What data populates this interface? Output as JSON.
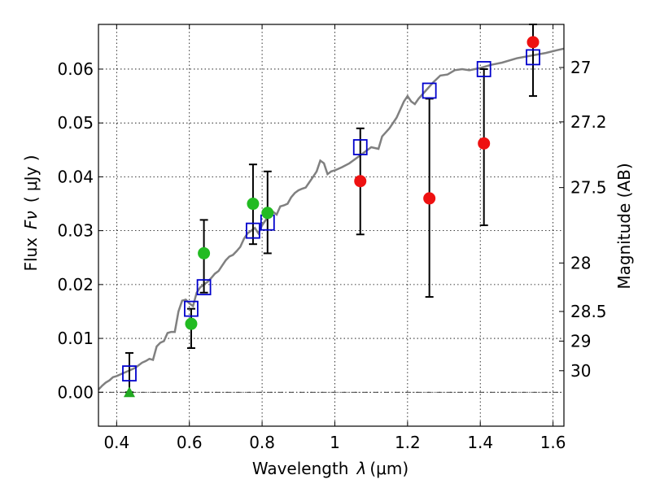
{
  "chart_data": {
    "type": "scatter",
    "xlabel_text": "Wavelength",
    "xlabel_symbol": "λ",
    "xlabel_unit": "(μm)",
    "ylabel_text": "Flux",
    "ylabel_symbol": "Fν",
    "ylabel_unit": "( μJy )",
    "y2label": "Magnitude (AB)",
    "xlim": [
      0.35,
      1.63
    ],
    "ylim": [
      -0.0063,
      0.0683
    ],
    "grid": true,
    "xticks": [
      {
        "value": 0.4,
        "label": "0.4"
      },
      {
        "value": 0.6,
        "label": "0.6"
      },
      {
        "value": 0.8,
        "label": "0.8"
      },
      {
        "value": 1.0,
        "label": "1"
      },
      {
        "value": 1.2,
        "label": "1.2"
      },
      {
        "value": 1.4,
        "label": "1.4"
      },
      {
        "value": 1.6,
        "label": "1.6"
      }
    ],
    "yticks": [
      {
        "value": 0.0,
        "label": "0.00"
      },
      {
        "value": 0.01,
        "label": "0.01"
      },
      {
        "value": 0.02,
        "label": "0.02"
      },
      {
        "value": 0.03,
        "label": "0.03"
      },
      {
        "value": 0.04,
        "label": "0.04"
      },
      {
        "value": 0.05,
        "label": "0.05"
      },
      {
        "value": 0.06,
        "label": "0.06"
      }
    ],
    "y2ticks": [
      {
        "flux": 0.0603,
        "label": "27"
      },
      {
        "flux": 0.0502,
        "label": "27.2"
      },
      {
        "flux": 0.038,
        "label": "27.5"
      },
      {
        "flux": 0.024,
        "label": "28"
      },
      {
        "flux": 0.015,
        "label": "28.5"
      },
      {
        "flux": 0.0095,
        "label": "29"
      },
      {
        "flux": 0.004,
        "label": "30"
      }
    ],
    "sed_model": {
      "color": "#808080",
      "points": [
        [
          0.35,
          0.0005
        ],
        [
          0.36,
          0.0012
        ],
        [
          0.37,
          0.0018
        ],
        [
          0.38,
          0.0022
        ],
        [
          0.39,
          0.0028
        ],
        [
          0.4,
          0.003
        ],
        [
          0.41,
          0.0033
        ],
        [
          0.42,
          0.0036
        ],
        [
          0.43,
          0.0039
        ],
        [
          0.44,
          0.0042
        ],
        [
          0.45,
          0.0045
        ],
        [
          0.46,
          0.005
        ],
        [
          0.47,
          0.0055
        ],
        [
          0.48,
          0.0058
        ],
        [
          0.49,
          0.0062
        ],
        [
          0.5,
          0.006
        ],
        [
          0.51,
          0.0085
        ],
        [
          0.52,
          0.0092
        ],
        [
          0.53,
          0.0095
        ],
        [
          0.54,
          0.011
        ],
        [
          0.55,
          0.0112
        ],
        [
          0.56,
          0.0112
        ],
        [
          0.57,
          0.015
        ],
        [
          0.58,
          0.017
        ],
        [
          0.59,
          0.0172
        ],
        [
          0.6,
          0.0165
        ],
        [
          0.61,
          0.016
        ],
        [
          0.62,
          0.0185
        ],
        [
          0.63,
          0.0195
        ],
        [
          0.64,
          0.02
        ],
        [
          0.65,
          0.0205
        ],
        [
          0.66,
          0.0212
        ],
        [
          0.67,
          0.022
        ],
        [
          0.68,
          0.0225
        ],
        [
          0.69,
          0.0235
        ],
        [
          0.7,
          0.0245
        ],
        [
          0.71,
          0.0252
        ],
        [
          0.72,
          0.0255
        ],
        [
          0.73,
          0.0262
        ],
        [
          0.74,
          0.027
        ],
        [
          0.75,
          0.0285
        ],
        [
          0.76,
          0.0295
        ],
        [
          0.77,
          0.03
        ],
        [
          0.78,
          0.0305
        ],
        [
          0.79,
          0.0295
        ],
        [
          0.8,
          0.031
        ],
        [
          0.81,
          0.032
        ],
        [
          0.82,
          0.0328
        ],
        [
          0.83,
          0.0335
        ],
        [
          0.84,
          0.033
        ],
        [
          0.85,
          0.0345
        ],
        [
          0.86,
          0.0347
        ],
        [
          0.87,
          0.035
        ],
        [
          0.88,
          0.0362
        ],
        [
          0.89,
          0.037
        ],
        [
          0.9,
          0.0375
        ],
        [
          0.91,
          0.0378
        ],
        [
          0.92,
          0.038
        ],
        [
          0.93,
          0.039
        ],
        [
          0.94,
          0.04
        ],
        [
          0.95,
          0.041
        ],
        [
          0.96,
          0.043
        ],
        [
          0.97,
          0.0425
        ],
        [
          0.98,
          0.0405
        ],
        [
          0.99,
          0.041
        ],
        [
          1.0,
          0.0412
        ],
        [
          1.02,
          0.0418
        ],
        [
          1.04,
          0.0425
        ],
        [
          1.06,
          0.0435
        ],
        [
          1.08,
          0.0445
        ],
        [
          1.1,
          0.0455
        ],
        [
          1.12,
          0.0452
        ],
        [
          1.13,
          0.0475
        ],
        [
          1.15,
          0.049
        ],
        [
          1.17,
          0.051
        ],
        [
          1.19,
          0.054
        ],
        [
          1.2,
          0.055
        ],
        [
          1.21,
          0.054
        ],
        [
          1.22,
          0.0535
        ],
        [
          1.23,
          0.0545
        ],
        [
          1.25,
          0.056
        ],
        [
          1.27,
          0.0575
        ],
        [
          1.29,
          0.0588
        ],
        [
          1.31,
          0.059
        ],
        [
          1.33,
          0.0598
        ],
        [
          1.35,
          0.06
        ],
        [
          1.37,
          0.0598
        ],
        [
          1.4,
          0.0602
        ],
        [
          1.43,
          0.0608
        ],
        [
          1.46,
          0.0612
        ],
        [
          1.5,
          0.062
        ],
        [
          1.54,
          0.0625
        ],
        [
          1.58,
          0.063
        ],
        [
          1.61,
          0.0635
        ],
        [
          1.63,
          0.0638
        ]
      ]
    },
    "model_boxes": {
      "color": "#0000cc",
      "points": [
        [
          0.435,
          0.0035
        ],
        [
          0.605,
          0.0155
        ],
        [
          0.64,
          0.0195
        ],
        [
          0.775,
          0.03
        ],
        [
          0.815,
          0.0315
        ],
        [
          1.07,
          0.0455
        ],
        [
          1.26,
          0.056
        ],
        [
          1.41,
          0.06
        ],
        [
          1.545,
          0.0622
        ]
      ]
    },
    "error_bars": {
      "color": "#000000",
      "points": [
        {
          "x": 0.435,
          "low": 0.0,
          "high": 0.0073
        },
        {
          "x": 0.605,
          "low": 0.0082,
          "high": 0.0155
        },
        {
          "x": 0.64,
          "low": 0.0185,
          "high": 0.032
        },
        {
          "x": 0.775,
          "low": 0.0275,
          "high": 0.0423
        },
        {
          "x": 0.815,
          "low": 0.0258,
          "high": 0.041
        },
        {
          "x": 1.07,
          "low": 0.0293,
          "high": 0.049
        },
        {
          "x": 1.26,
          "low": 0.0177,
          "high": 0.0545
        },
        {
          "x": 1.41,
          "low": 0.031,
          "high": 0.06
        },
        {
          "x": 1.545,
          "low": 0.055,
          "high": 0.0683
        }
      ]
    },
    "green_points": {
      "color": "#22bb22",
      "points": [
        [
          0.605,
          0.0127
        ],
        [
          0.64,
          0.0258
        ],
        [
          0.775,
          0.035
        ],
        [
          0.815,
          0.0333
        ]
      ]
    },
    "red_points": {
      "color": "#ee1111",
      "points": [
        [
          1.07,
          0.0392
        ],
        [
          1.26,
          0.036
        ],
        [
          1.41,
          0.0462
        ],
        [
          1.545,
          0.065
        ]
      ]
    },
    "upper_limit": {
      "color": "#22aa22",
      "marker": "triangle",
      "point": [
        0.435,
        0.0
      ]
    }
  }
}
